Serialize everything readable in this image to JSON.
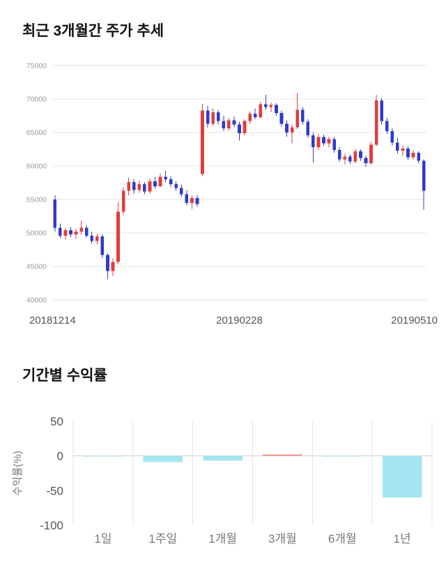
{
  "chart_data": [
    {
      "type": "candlestick",
      "title": "최근 3개월간 주가 추세",
      "x_tick_labels": [
        "20181214",
        "20190228",
        "20190510"
      ],
      "y_ticks": [
        40000,
        45000,
        50000,
        55000,
        60000,
        65000,
        70000,
        75000
      ],
      "ylim": [
        40000,
        75000
      ],
      "grid": true,
      "up_color": "#e23d3d",
      "down_color": "#2f3cc5",
      "grid_color": "#e4e4e4",
      "tick_color": "#999999",
      "date_color": "#555555",
      "candles_ohlc": [
        [
          55000,
          55600,
          50200,
          50800
        ],
        [
          50800,
          51400,
          49200,
          49600
        ],
        [
          49600,
          50800,
          49000,
          50400
        ],
        [
          50400,
          50900,
          49400,
          49800
        ],
        [
          49800,
          50600,
          49100,
          50200
        ],
        [
          50200,
          51800,
          49800,
          50800
        ],
        [
          50800,
          51200,
          49300,
          49600
        ],
        [
          49600,
          50200,
          48400,
          48800
        ],
        [
          48800,
          49900,
          48300,
          49500
        ],
        [
          49500,
          49800,
          46300,
          46700
        ],
        [
          46700,
          47000,
          43100,
          44300
        ],
        [
          44300,
          46200,
          43600,
          45700
        ],
        [
          45700,
          54600,
          45300,
          53200
        ],
        [
          53200,
          56800,
          52800,
          56300
        ],
        [
          56300,
          58300,
          55600,
          57600
        ],
        [
          57600,
          58000,
          55900,
          56400
        ],
        [
          56400,
          57800,
          56000,
          57300
        ],
        [
          57300,
          57600,
          55800,
          56200
        ],
        [
          56200,
          58100,
          55900,
          57700
        ],
        [
          57700,
          58400,
          56600,
          57000
        ],
        [
          57000,
          58900,
          56800,
          58400
        ],
        [
          58400,
          59300,
          57600,
          58000
        ],
        [
          58000,
          58500,
          56900,
          57300
        ],
        [
          57300,
          57700,
          56300,
          56700
        ],
        [
          56700,
          57200,
          55400,
          55800
        ],
        [
          55800,
          56400,
          54100,
          54500
        ],
        [
          54500,
          55600,
          53600,
          55200
        ],
        [
          55200,
          55700,
          53900,
          54300
        ],
        [
          58800,
          69300,
          58500,
          68300
        ],
        [
          68300,
          69000,
          65800,
          66300
        ],
        [
          66300,
          68600,
          66000,
          68000
        ],
        [
          68000,
          68400,
          66200,
          66700
        ],
        [
          66700,
          67500,
          65200,
          65600
        ],
        [
          65600,
          67200,
          65300,
          66800
        ],
        [
          66800,
          67400,
          65800,
          66200
        ],
        [
          66200,
          66600,
          63800,
          64900
        ],
        [
          64900,
          67000,
          64600,
          66700
        ],
        [
          66700,
          68200,
          66300,
          67800
        ],
        [
          67800,
          68600,
          67000,
          67300
        ],
        [
          67300,
          69600,
          67100,
          69200
        ],
        [
          69200,
          70600,
          68400,
          68800
        ],
        [
          68800,
          69500,
          68000,
          69100
        ],
        [
          69100,
          69400,
          67500,
          67900
        ],
        [
          67900,
          68300,
          65900,
          66300
        ],
        [
          66300,
          66800,
          64400,
          65000
        ],
        [
          65000,
          66200,
          63400,
          65800
        ],
        [
          65800,
          70900,
          65500,
          68400
        ],
        [
          68400,
          68800,
          66200,
          66600
        ],
        [
          66600,
          67000,
          64200,
          64600
        ],
        [
          64600,
          65000,
          60500,
          62800
        ],
        [
          62800,
          64800,
          62400,
          64300
        ],
        [
          64300,
          64700,
          63000,
          63400
        ],
        [
          63400,
          64400,
          62800,
          64000
        ],
        [
          64000,
          64300,
          62000,
          62400
        ],
        [
          62400,
          62800,
          60600,
          61000
        ],
        [
          61000,
          61800,
          60200,
          61400
        ],
        [
          61400,
          61700,
          60300,
          60700
        ],
        [
          60700,
          62600,
          60400,
          62200
        ],
        [
          62200,
          62500,
          60800,
          61200
        ],
        [
          61200,
          61500,
          59900,
          60400
        ],
        [
          60400,
          63600,
          60200,
          63200
        ],
        [
          63200,
          70600,
          63000,
          69800
        ],
        [
          69800,
          70100,
          66200,
          66700
        ],
        [
          66700,
          67200,
          64800,
          65200
        ],
        [
          65200,
          65600,
          63000,
          63500
        ],
        [
          63500,
          64200,
          61800,
          62300
        ],
        [
          62300,
          63000,
          61500,
          62600
        ],
        [
          62600,
          62900,
          60900,
          61300
        ],
        [
          61300,
          62400,
          61000,
          62000
        ],
        [
          62000,
          62200,
          60400,
          60800
        ],
        [
          60800,
          61000,
          53500,
          56300
        ]
      ]
    },
    {
      "type": "bar",
      "title": "기간별 수익률",
      "ylabel": "수익률(%)",
      "categories": [
        "1일",
        "1주일",
        "1개월",
        "3개월",
        "6개월",
        "1년"
      ],
      "values": [
        -0.5,
        -9,
        -7,
        2,
        -1,
        -60
      ],
      "ylim": [
        -100,
        50
      ],
      "y_ticks": [
        50,
        0,
        -50,
        -100
      ],
      "grid": true,
      "legend_position": "none",
      "negative_color": "#a5e7f0",
      "positive_color": "#f0948e",
      "grid_color": "#e3e3e3",
      "zero_line_color": "#cfcfcf",
      "tick_color": "#555555",
      "category_color": "#777777"
    }
  ]
}
